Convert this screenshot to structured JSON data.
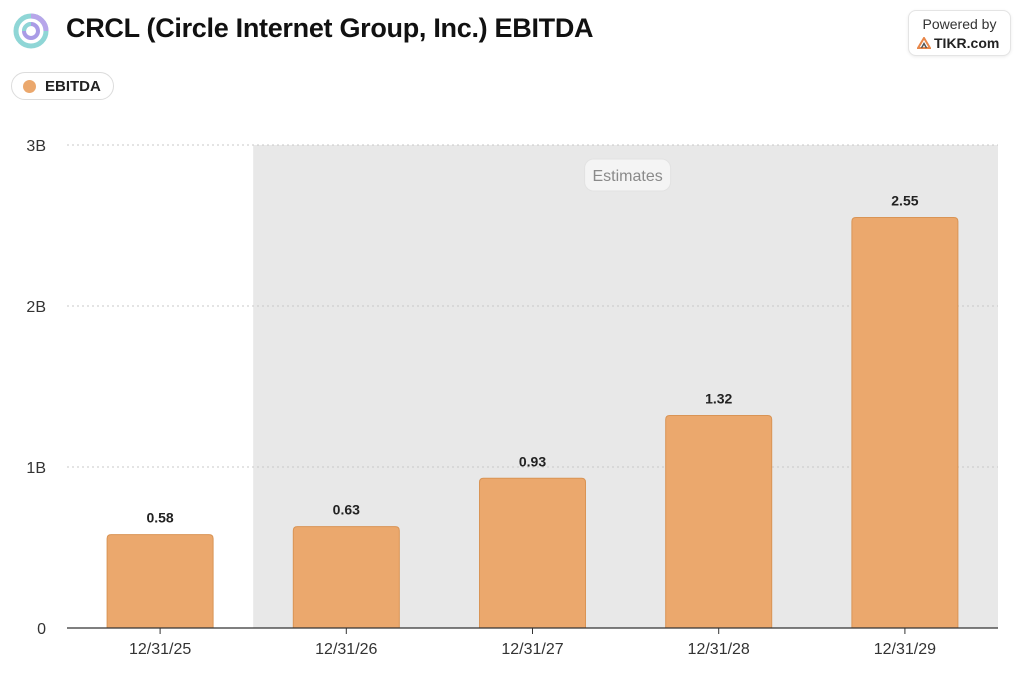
{
  "header": {
    "title": "CRCL (Circle Internet Group, Inc.) EBITDA",
    "powered_by": "Powered by",
    "brand": "TIKR.com"
  },
  "legend": {
    "label": "EBITDA",
    "color": "#eba86d"
  },
  "colors": {
    "bar": "#eba86d",
    "bar_border": "#d99455",
    "estimate_band": "#e8e8e8"
  },
  "chart_data": {
    "type": "bar",
    "categories": [
      "12/31/25",
      "12/31/26",
      "12/31/27",
      "12/31/28",
      "12/31/29"
    ],
    "series": [
      {
        "name": "EBITDA",
        "values": [
          0.58,
          0.63,
          0.93,
          1.32,
          2.55
        ],
        "labels": [
          "0.58",
          "0.63",
          "0.93",
          "1.32",
          "2.55"
        ]
      }
    ],
    "ylim": [
      0,
      3
    ],
    "yticks": [
      0,
      1,
      2,
      3
    ],
    "ytick_labels": [
      "0",
      "1B",
      "2B",
      "3B"
    ],
    "grid": true,
    "estimates_start_category": "12/31/26",
    "annotation": "Estimates"
  }
}
